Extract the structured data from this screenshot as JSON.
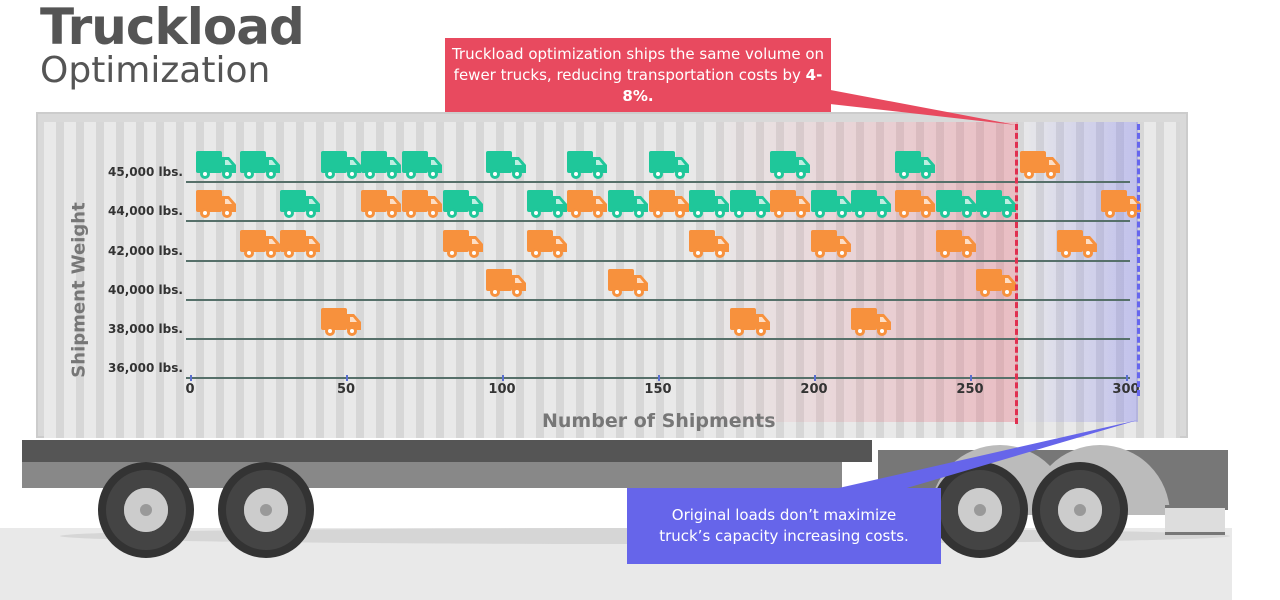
{
  "title": {
    "line1": "Truckload",
    "line2": "Optimization"
  },
  "callouts": {
    "optimized": {
      "text": "Truckload optimization ships the same volume on fewer trucks, reducing transportation costs by ",
      "highlight": "4-8%.",
      "color": "#e84a5f"
    },
    "original": {
      "text": "Original loads don’t maximize truck’s capacity increasing costs.",
      "color": "#6665ea"
    }
  },
  "chart_data": {
    "type": "scatter",
    "xlabel": "Number of Shipments",
    "ylabel": "Shipment Weight",
    "xlim": [
      0,
      305
    ],
    "xticks": [
      "0",
      "50",
      "100",
      "150",
      "200",
      "250",
      "300"
    ],
    "yticks": [
      "45,000 lbs.",
      "44,000 lbs.",
      "42,000 lbs.",
      "40,000 lbs.",
      "38,000 lbs.",
      "36,000 lbs."
    ],
    "reference_lines": [
      {
        "name": "optimized",
        "x": 264,
        "color": "#e03050"
      },
      {
        "name": "original",
        "x": 303,
        "color": "#6666ee"
      }
    ],
    "colors": {
      "full": "#1fc79a",
      "partial": "#f7913d"
    },
    "series": [
      {
        "name": "45,000 lbs.",
        "points": [
          [
            1,
            "full"
          ],
          [
            15,
            "full"
          ],
          [
            41,
            "full"
          ],
          [
            54,
            "full"
          ],
          [
            67,
            "full"
          ],
          [
            94,
            "full"
          ],
          [
            120,
            "full"
          ],
          [
            146,
            "full"
          ],
          [
            185,
            "full"
          ],
          [
            225,
            "full"
          ],
          [
            265,
            "partial"
          ]
        ]
      },
      {
        "name": "44,000 lbs.",
        "points": [
          [
            1,
            "partial"
          ],
          [
            28,
            "full"
          ],
          [
            54,
            "partial"
          ],
          [
            67,
            "partial"
          ],
          [
            80,
            "full"
          ],
          [
            107,
            "full"
          ],
          [
            120,
            "partial"
          ],
          [
            133,
            "full"
          ],
          [
            146,
            "partial"
          ],
          [
            159,
            "full"
          ],
          [
            172,
            "full"
          ],
          [
            185,
            "partial"
          ],
          [
            198,
            "full"
          ],
          [
            211,
            "full"
          ],
          [
            225,
            "partial"
          ],
          [
            238,
            "full"
          ],
          [
            251,
            "full"
          ],
          [
            291,
            "partial"
          ]
        ]
      },
      {
        "name": "42,000 lbs.",
        "points": [
          [
            15,
            "partial"
          ],
          [
            28,
            "partial"
          ],
          [
            80,
            "partial"
          ],
          [
            107,
            "partial"
          ],
          [
            159,
            "partial"
          ],
          [
            198,
            "partial"
          ],
          [
            238,
            "partial"
          ],
          [
            277,
            "partial"
          ]
        ]
      },
      {
        "name": "40,000 lbs.",
        "points": [
          [
            94,
            "partial"
          ],
          [
            133,
            "partial"
          ],
          [
            251,
            "partial"
          ]
        ]
      },
      {
        "name": "38,000 lbs.",
        "points": [
          [
            41,
            "partial"
          ],
          [
            172,
            "partial"
          ],
          [
            211,
            "partial"
          ]
        ]
      },
      {
        "name": "36,000 lbs.",
        "points": []
      }
    ]
  }
}
